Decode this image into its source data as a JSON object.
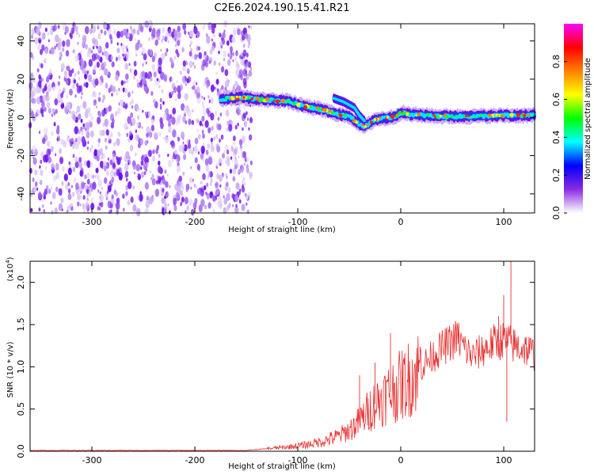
{
  "title": "C2E6.2024.190.15.41.R21",
  "chart_data": [
    {
      "type": "heatmap",
      "xlabel": "Height of straight line (km)",
      "ylabel": "Frequency (Hz)",
      "xlim": [
        -360,
        130
      ],
      "ylim": [
        -50,
        49
      ],
      "x_ticks": [
        -300,
        -200,
        -100,
        0,
        100
      ],
      "y_ticks": [
        -40,
        -20,
        0,
        20,
        40
      ],
      "noise_region_x": [
        -360,
        -145
      ],
      "signal_track": [
        {
          "x": -175,
          "y": 9.5
        },
        {
          "x": -155,
          "y": 10.5
        },
        {
          "x": -140,
          "y": 9.5
        },
        {
          "x": -125,
          "y": 9.0
        },
        {
          "x": -110,
          "y": 8.5
        },
        {
          "x": -95,
          "y": 6.0
        },
        {
          "x": -80,
          "y": 4.5
        },
        {
          "x": -70,
          "y": 3.0
        },
        {
          "x": -60,
          "y": 1.5
        },
        {
          "x": -50,
          "y": 0.5
        },
        {
          "x": -40,
          "y": -3.5
        },
        {
          "x": -35,
          "y": -5.0
        },
        {
          "x": -25,
          "y": -1.0
        },
        {
          "x": -15,
          "y": -0.5
        },
        {
          "x": -5,
          "y": 0.5
        },
        {
          "x": 0,
          "y": 2.5
        },
        {
          "x": 10,
          "y": 1.5
        },
        {
          "x": 40,
          "y": 0.5
        },
        {
          "x": 70,
          "y": 0.5
        },
        {
          "x": 100,
          "y": 1.0
        },
        {
          "x": 130,
          "y": 1.0
        }
      ],
      "secondary_track": [
        {
          "x": -65,
          "y": 10.0
        },
        {
          "x": -55,
          "y": 8.0
        },
        {
          "x": -45,
          "y": 5.0
        },
        {
          "x": -40,
          "y": 1.0
        },
        {
          "x": -35,
          "y": -2.0
        }
      ],
      "colorbar": {
        "label": "Normalized spectral amplitude",
        "range": [
          0,
          1
        ],
        "ticks": [
          0.0,
          0.2,
          0.4,
          0.6,
          0.8
        ],
        "tick_labels": [
          "0.0",
          "0.2",
          "0.4",
          "0.6",
          "0.8"
        ],
        "colors": [
          "#ffffff",
          "#8a2be2",
          "#0000ff",
          "#00ffff",
          "#00ff00",
          "#ffff00",
          "#ff8000",
          "#ff0000",
          "#ff00ff"
        ]
      }
    },
    {
      "type": "line",
      "xlabel": "Height of straight line (km)",
      "ylabel": "SNR (10 * v/v)",
      "y_scale_label": "(x10",
      "y_scale_exponent": "4",
      "y_scale_close": ")",
      "xlim": [
        -360,
        130
      ],
      "ylim": [
        0,
        2.25
      ],
      "x_ticks": [
        -300,
        -200,
        -100,
        0,
        100
      ],
      "y_ticks": [
        0.0,
        0.5,
        1.0,
        1.5,
        2.0
      ],
      "y_tick_labels": [
        "0.0",
        "0.5",
        "1.0",
        "1.5",
        "2.0"
      ],
      "color": "#e83030",
      "envelope": [
        {
          "x": -360,
          "y": 0.01
        },
        {
          "x": -200,
          "y": 0.01
        },
        {
          "x": -150,
          "y": 0.01
        },
        {
          "x": -130,
          "y": 0.03
        },
        {
          "x": -110,
          "y": 0.05
        },
        {
          "x": -90,
          "y": 0.08
        },
        {
          "x": -75,
          "y": 0.12
        },
        {
          "x": -60,
          "y": 0.18
        },
        {
          "x": -50,
          "y": 0.25
        },
        {
          "x": -40,
          "y": 0.35
        },
        {
          "x": -30,
          "y": 0.5
        },
        {
          "x": -20,
          "y": 0.62
        },
        {
          "x": -10,
          "y": 0.7
        },
        {
          "x": 0,
          "y": 0.78
        },
        {
          "x": 10,
          "y": 0.88
        },
        {
          "x": 20,
          "y": 1.0
        },
        {
          "x": 30,
          "y": 1.12
        },
        {
          "x": 40,
          "y": 1.22
        },
        {
          "x": 50,
          "y": 1.3
        },
        {
          "x": 55,
          "y": 1.35
        },
        {
          "x": 60,
          "y": 1.25
        },
        {
          "x": 65,
          "y": 1.18
        },
        {
          "x": 70,
          "y": 1.12
        },
        {
          "x": 80,
          "y": 1.2
        },
        {
          "x": 90,
          "y": 1.28
        },
        {
          "x": 100,
          "y": 1.32
        },
        {
          "x": 110,
          "y": 1.25
        },
        {
          "x": 120,
          "y": 1.22
        },
        {
          "x": 130,
          "y": 1.15
        }
      ],
      "spikes": [
        {
          "x": -10,
          "y": 1.4
        },
        {
          "x": 95,
          "y": 1.6
        },
        {
          "x": 100,
          "y": 1.85
        },
        {
          "x": 107,
          "y": 2.25
        },
        {
          "x": 103,
          "y": 0.35
        },
        {
          "x": -40,
          "y": 0.9
        },
        {
          "x": -25,
          "y": 1.05
        }
      ]
    }
  ]
}
